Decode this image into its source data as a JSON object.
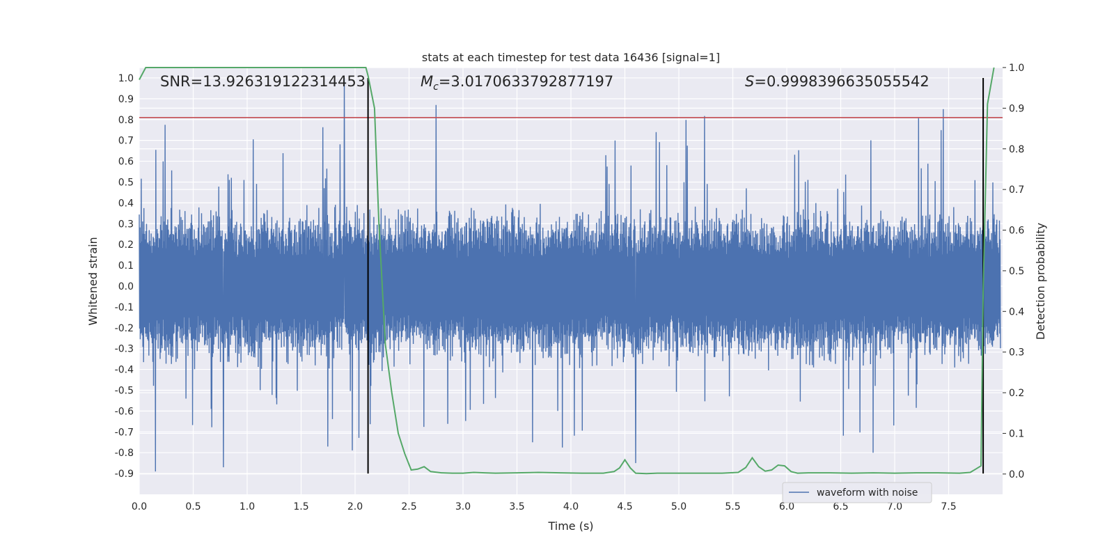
{
  "chart_data": {
    "type": "line",
    "title": "stats at each timestep for test data 16436 [signal=1]",
    "xlabel": "Time (s)",
    "ylabel": "Whitened strain",
    "y2label": "Detection probability",
    "xlim": [
      0,
      8
    ],
    "ylim": [
      -1.0,
      1.05
    ],
    "y2lim": [
      -0.05,
      1.0
    ],
    "xticks": [
      "0.0",
      "0.5",
      "1.0",
      "1.5",
      "2.0",
      "2.5",
      "3.0",
      "3.5",
      "4.0",
      "4.5",
      "5.0",
      "5.5",
      "6.0",
      "6.5",
      "7.0",
      "7.5"
    ],
    "yticks": [
      "1.0",
      "0.9",
      "0.8",
      "0.7",
      "0.6",
      "0.5",
      "0.4",
      "0.3",
      "0.2",
      "0.1",
      "0.0",
      "-0.1",
      "-0.2",
      "-0.3",
      "-0.4",
      "-0.5",
      "-0.6",
      "-0.7",
      "-0.8",
      "-0.9"
    ],
    "y2ticks": [
      "1.0",
      "0.9",
      "0.8",
      "0.7",
      "0.6",
      "0.5",
      "0.4",
      "0.3",
      "0.2",
      "0.1",
      "0.0"
    ],
    "grid": true,
    "legend": {
      "placement": "lower-right",
      "entries": [
        "waveform with noise"
      ]
    },
    "annotations": {
      "snr": "SNR=13.926319122314453",
      "mc_sym": "M",
      "mc_sub": "c",
      "mc_val": "=3.0170633792877197",
      "s_sym": "S",
      "s_val": "=0.9998396635055542"
    },
    "series": [
      {
        "name": "waveform with noise",
        "axis": "left",
        "color": "#4c72b0",
        "typical_amplitude": 0.4,
        "peak_range": [
          -0.9,
          1.0
        ]
      },
      {
        "axis": "right",
        "color": "#55a868",
        "x": [
          0.0,
          0.06,
          0.12,
          0.18,
          0.24,
          0.3,
          0.5,
          0.8,
          1.0,
          1.3,
          1.6,
          1.9,
          2.1,
          2.12,
          2.18,
          2.22,
          2.28,
          2.34,
          2.4,
          2.46,
          2.52,
          2.58,
          2.64,
          2.7,
          2.8,
          2.9,
          3.0,
          3.1,
          3.2,
          3.3,
          3.5,
          3.7,
          3.9,
          4.1,
          4.3,
          4.4,
          4.45,
          4.5,
          4.55,
          4.6,
          4.7,
          4.8,
          5.0,
          5.2,
          5.4,
          5.55,
          5.62,
          5.68,
          5.74,
          5.8,
          5.86,
          5.92,
          5.98,
          6.04,
          6.1,
          6.2,
          6.4,
          6.6,
          6.8,
          7.0,
          7.2,
          7.4,
          7.6,
          7.7,
          7.75,
          7.8,
          7.82,
          7.86,
          7.92
        ],
        "y": [
          0.97,
          1.0,
          1.0,
          1.0,
          1.0,
          1.0,
          1.0,
          1.0,
          1.0,
          1.0,
          1.0,
          1.0,
          1.0,
          0.98,
          0.9,
          0.62,
          0.32,
          0.2,
          0.1,
          0.05,
          0.01,
          0.012,
          0.018,
          0.006,
          0.003,
          0.002,
          0.002,
          0.004,
          0.003,
          0.002,
          0.003,
          0.004,
          0.003,
          0.002,
          0.002,
          0.006,
          0.015,
          0.035,
          0.015,
          0.002,
          0.001,
          0.002,
          0.002,
          0.002,
          0.002,
          0.004,
          0.016,
          0.04,
          0.018,
          0.007,
          0.01,
          0.022,
          0.02,
          0.006,
          0.002,
          0.003,
          0.003,
          0.002,
          0.003,
          0.002,
          0.003,
          0.003,
          0.002,
          0.004,
          0.012,
          0.02,
          0.45,
          0.91,
          1.0
        ]
      }
    ],
    "reference_lines": [
      {
        "kind": "horizontal",
        "axis": "left",
        "y": 0.81,
        "color": "#c44e52"
      },
      {
        "kind": "vertical",
        "x": 2.12,
        "y_from": -0.9,
        "y_to": 1.0,
        "color": "#000000"
      },
      {
        "kind": "vertical",
        "x": 7.82,
        "y_from": -0.9,
        "y_to": 1.0,
        "color": "#000000"
      }
    ],
    "colors": {
      "background": "#eaeaf2",
      "grid": "#ffffff",
      "strain": "#4c72b0",
      "probability": "#55a868",
      "threshold": "#c44e52"
    }
  }
}
